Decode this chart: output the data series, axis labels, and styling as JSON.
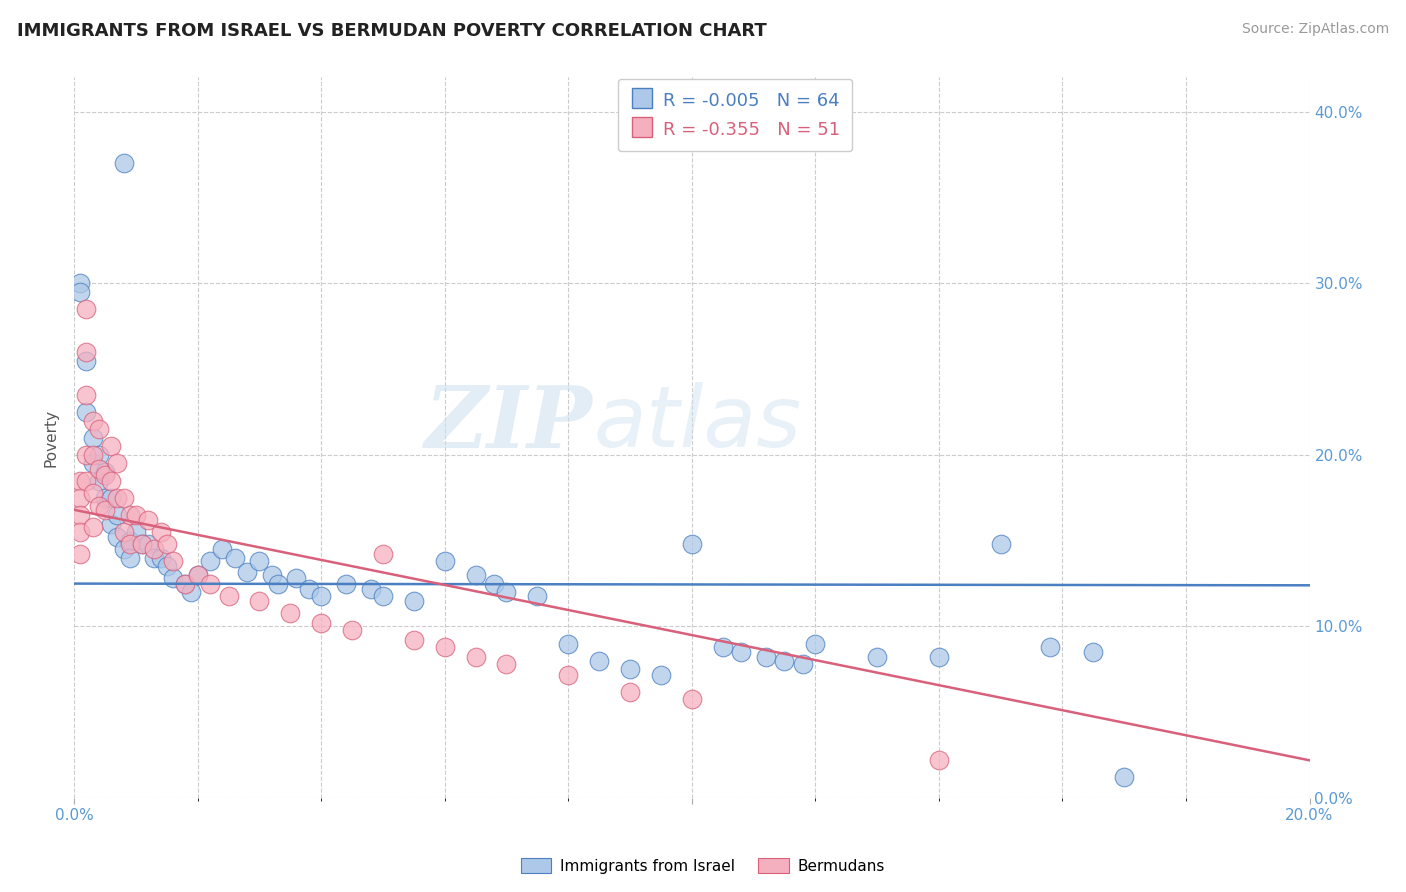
{
  "title": "IMMIGRANTS FROM ISRAEL VS BERMUDAN POVERTY CORRELATION CHART",
  "source": "Source: ZipAtlas.com",
  "ylabel": "Poverty",
  "xlim": [
    0.0,
    0.2
  ],
  "ylim": [
    0.0,
    0.42
  ],
  "blue_R": -0.005,
  "blue_N": 64,
  "pink_R": -0.355,
  "pink_N": 51,
  "blue_color": "#adc8e8",
  "pink_color": "#f5b0c0",
  "blue_line_color": "#4a7fc1",
  "pink_line_color": "#d9607a",
  "watermark_zip": "ZIP",
  "watermark_atlas": "atlas",
  "legend_label_blue": "Immigrants from Israel",
  "legend_label_pink": "Bermudans",
  "blue_line_y0": 0.125,
  "blue_line_y1": 0.124,
  "pink_line_y0": 0.168,
  "pink_line_y1": 0.022,
  "blue_x": [
    0.008,
    0.001,
    0.001,
    0.002,
    0.002,
    0.003,
    0.003,
    0.004,
    0.004,
    0.005,
    0.005,
    0.006,
    0.006,
    0.007,
    0.007,
    0.008,
    0.009,
    0.009,
    0.01,
    0.011,
    0.012,
    0.013,
    0.014,
    0.015,
    0.016,
    0.018,
    0.019,
    0.02,
    0.022,
    0.024,
    0.026,
    0.028,
    0.03,
    0.032,
    0.033,
    0.036,
    0.038,
    0.04,
    0.044,
    0.048,
    0.05,
    0.055,
    0.06,
    0.065,
    0.068,
    0.07,
    0.075,
    0.08,
    0.085,
    0.09,
    0.095,
    0.1,
    0.105,
    0.108,
    0.112,
    0.115,
    0.118,
    0.12,
    0.13,
    0.14,
    0.15,
    0.158,
    0.165,
    0.17
  ],
  "blue_y": [
    0.37,
    0.3,
    0.295,
    0.255,
    0.225,
    0.21,
    0.195,
    0.2,
    0.185,
    0.19,
    0.175,
    0.175,
    0.16,
    0.165,
    0.152,
    0.145,
    0.15,
    0.14,
    0.155,
    0.148,
    0.148,
    0.14,
    0.14,
    0.135,
    0.128,
    0.125,
    0.12,
    0.13,
    0.138,
    0.145,
    0.14,
    0.132,
    0.138,
    0.13,
    0.125,
    0.128,
    0.122,
    0.118,
    0.125,
    0.122,
    0.118,
    0.115,
    0.138,
    0.13,
    0.125,
    0.12,
    0.118,
    0.09,
    0.08,
    0.075,
    0.072,
    0.148,
    0.088,
    0.085,
    0.082,
    0.08,
    0.078,
    0.09,
    0.082,
    0.082,
    0.148,
    0.088,
    0.085,
    0.012
  ],
  "pink_x": [
    0.001,
    0.001,
    0.001,
    0.001,
    0.001,
    0.002,
    0.002,
    0.002,
    0.002,
    0.002,
    0.003,
    0.003,
    0.003,
    0.003,
    0.004,
    0.004,
    0.004,
    0.005,
    0.005,
    0.006,
    0.006,
    0.007,
    0.007,
    0.008,
    0.008,
    0.009,
    0.009,
    0.01,
    0.011,
    0.012,
    0.013,
    0.014,
    0.015,
    0.016,
    0.018,
    0.02,
    0.022,
    0.025,
    0.03,
    0.035,
    0.04,
    0.045,
    0.05,
    0.055,
    0.06,
    0.065,
    0.07,
    0.08,
    0.09,
    0.1,
    0.14
  ],
  "pink_y": [
    0.185,
    0.175,
    0.165,
    0.155,
    0.142,
    0.285,
    0.26,
    0.235,
    0.2,
    0.185,
    0.22,
    0.2,
    0.178,
    0.158,
    0.215,
    0.192,
    0.17,
    0.188,
    0.168,
    0.205,
    0.185,
    0.195,
    0.175,
    0.175,
    0.155,
    0.165,
    0.148,
    0.165,
    0.148,
    0.162,
    0.145,
    0.155,
    0.148,
    0.138,
    0.125,
    0.13,
    0.125,
    0.118,
    0.115,
    0.108,
    0.102,
    0.098,
    0.142,
    0.092,
    0.088,
    0.082,
    0.078,
    0.072,
    0.062,
    0.058,
    0.022
  ]
}
